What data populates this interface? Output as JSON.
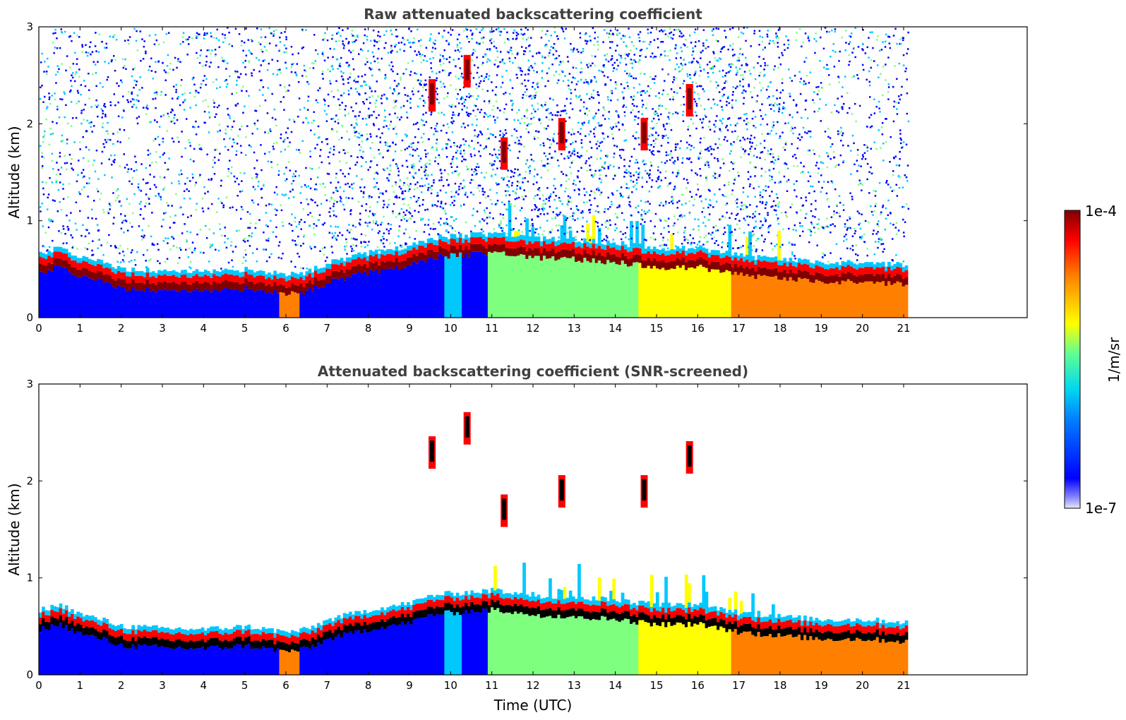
{
  "chart_data": [
    {
      "type": "heatmap",
      "title": "Raw attenuated backscattering coefficient",
      "xlabel": "",
      "ylabel": "Altitude (km)",
      "xlim": [
        0,
        24
      ],
      "ylim": [
        0,
        3
      ],
      "x_ticks": [
        "0",
        "1",
        "2",
        "3",
        "4",
        "5",
        "6",
        "7",
        "8",
        "9",
        "10",
        "11",
        "12",
        "13",
        "14",
        "15",
        "16",
        "17",
        "18",
        "19",
        "20",
        "21"
      ],
      "y_ticks": [
        "0",
        "1",
        "2",
        "3"
      ],
      "data_end_hour": 21.1,
      "layer_top_km": [
        [
          0,
          0.55
        ],
        [
          0.5,
          0.6
        ],
        [
          1,
          0.5
        ],
        [
          1.5,
          0.45
        ],
        [
          2,
          0.38
        ],
        [
          3,
          0.36
        ],
        [
          4,
          0.35
        ],
        [
          5,
          0.38
        ],
        [
          6,
          0.32
        ],
        [
          6.5,
          0.35
        ],
        [
          7,
          0.45
        ],
        [
          8,
          0.55
        ],
        [
          9,
          0.62
        ],
        [
          9.5,
          0.7
        ],
        [
          10,
          0.72
        ],
        [
          11,
          0.75
        ],
        [
          12,
          0.7
        ],
        [
          13,
          0.68
        ],
        [
          14,
          0.65
        ],
        [
          15,
          0.6
        ],
        [
          16,
          0.6
        ],
        [
          17,
          0.52
        ],
        [
          18,
          0.48
        ],
        [
          19,
          0.45
        ],
        [
          20,
          0.45
        ],
        [
          21.1,
          0.42
        ]
      ],
      "clouds": [
        {
          "t": 9.55,
          "alt_km": 2.3
        },
        {
          "t": 10.4,
          "alt_km": 2.55
        },
        {
          "t": 12.7,
          "alt_km": 1.9
        },
        {
          "t": 14.7,
          "alt_km": 1.9
        },
        {
          "t": 15.8,
          "alt_km": 2.25
        },
        {
          "t": 11.3,
          "alt_km": 1.7
        }
      ]
    },
    {
      "type": "heatmap",
      "title": "Attenuated backscattering coefficient (SNR-screened)",
      "xlabel": "Time (UTC)",
      "ylabel": "Altitude (km)",
      "xlim": [
        0,
        24
      ],
      "ylim": [
        0,
        3
      ],
      "x_ticks": [
        "0",
        "1",
        "2",
        "3",
        "4",
        "5",
        "6",
        "7",
        "8",
        "9",
        "10",
        "11",
        "12",
        "13",
        "14",
        "15",
        "16",
        "17",
        "18",
        "19",
        "20",
        "21"
      ],
      "y_ticks": [
        "0",
        "1",
        "2",
        "3"
      ],
      "data_end_hour": 21.1
    }
  ],
  "colorbar": {
    "max_label": "1e-4",
    "min_label": "1e-7",
    "unit_label": "1/m/sr",
    "colors": [
      "#e6e6fa",
      "#0000ff",
      "#00c8ff",
      "#7fff7f",
      "#ffff00",
      "#ff8000",
      "#ff0000",
      "#800000"
    ]
  }
}
